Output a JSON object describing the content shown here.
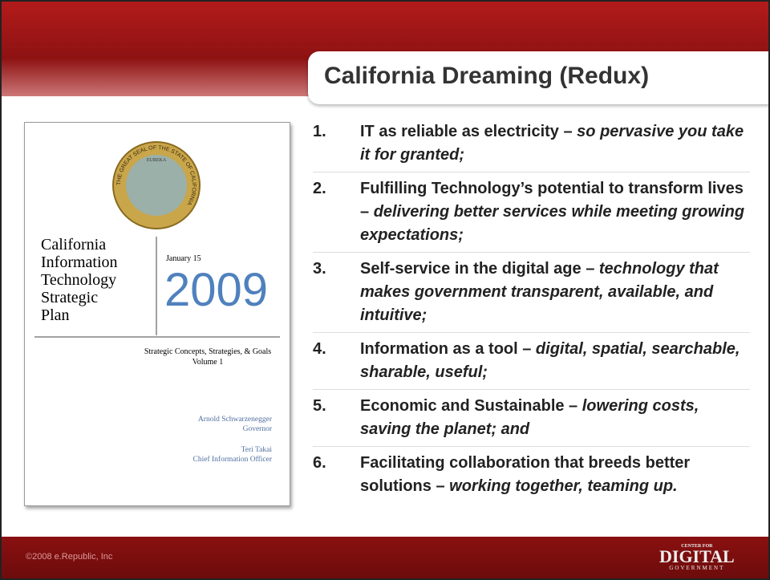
{
  "title": "California Dreaming (Redux)",
  "cover": {
    "seal_text": "THE GREAT SEAL OF THE STATE OF CALIFORNIA",
    "seal_motto": "EUREKA",
    "title_lines": [
      "California",
      "Information",
      "Technology",
      "Strategic",
      "Plan"
    ],
    "date": "January 15",
    "year": "2009",
    "subtitle": "Strategic Concepts, Strategies, & Goals",
    "volume": "Volume 1",
    "signatories": [
      {
        "name": "Arnold Schwarzenegger",
        "role": "Governor"
      },
      {
        "name": "Teri Takai",
        "role": "Chief Information Officer"
      }
    ]
  },
  "items": [
    {
      "number": "1.",
      "bold": "IT as reliable as electricity –",
      "italic": "so pervasive you take it for granted;"
    },
    {
      "number": "2.",
      "bold": "Fulfilling Technology’s potential to transform lives –",
      "italic": "delivering better services while meeting growing expectations;"
    },
    {
      "number": "3.",
      "bold": "Self-service in the digital age –",
      "italic": "technology that makes government transparent, available, and intuitive;"
    },
    {
      "number": "4.",
      "bold": "Information as a tool –",
      "italic": "digital, spatial, searchable, sharable, useful;"
    },
    {
      "number": "5.",
      "bold": "Economic and Sustainable –",
      "italic": "lowering costs, saving the planet; and"
    },
    {
      "number": "6.",
      "bold": "Facilitating collaboration that breeds better solutions –",
      "italic": "working together, teaming up."
    }
  ],
  "footer": {
    "copyright": "©2008 e.Republic, Inc",
    "logo_top": "CENTER FOR",
    "logo_main": "DIGITAL",
    "logo_bottom": "GOVERNMENT"
  }
}
